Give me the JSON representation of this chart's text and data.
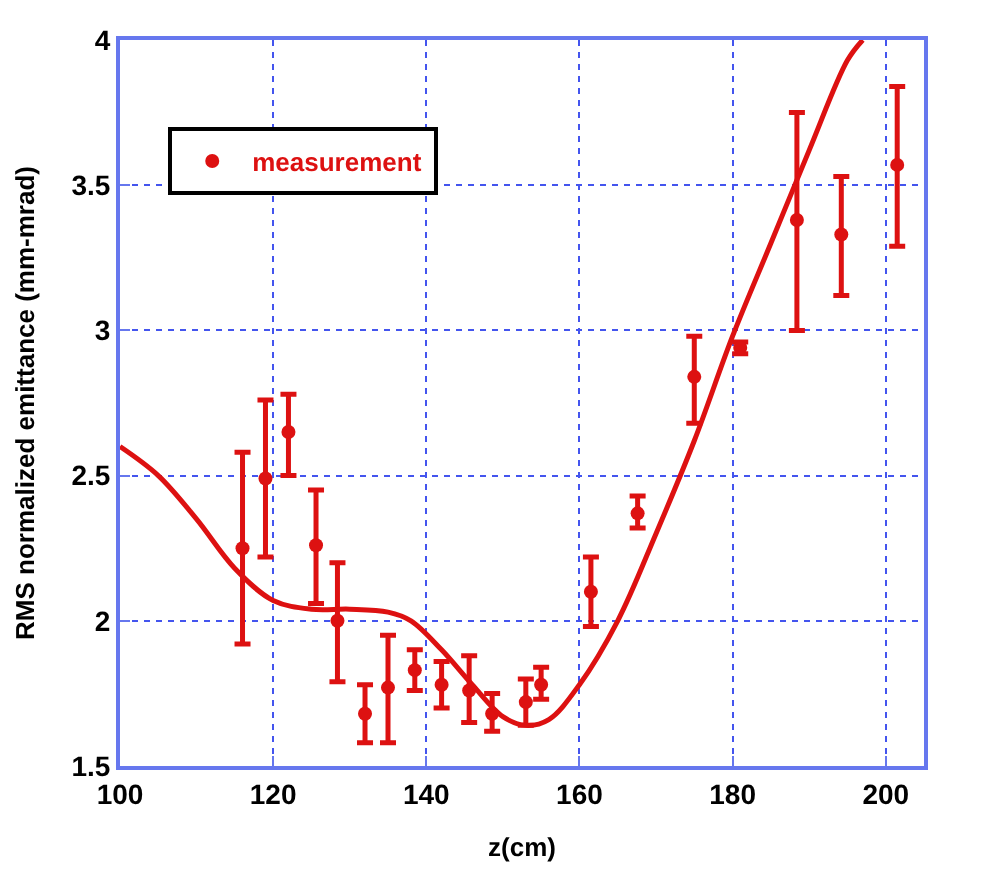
{
  "chart_data": {
    "type": "scatter",
    "xlabel": "z(cm)",
    "ylabel": "RMS normalized emittance (mm-mrad)",
    "xlim": [
      100,
      205
    ],
    "ylim": [
      1.5,
      4
    ],
    "xticks": [
      100,
      120,
      140,
      160,
      180,
      200
    ],
    "yticks": [
      1.5,
      2,
      2.5,
      3,
      3.5,
      4
    ],
    "grid": true,
    "legend": "top left",
    "series": [
      {
        "name": "measurement",
        "marker": "circle",
        "color": "#dd1111",
        "x": [
          116,
          119,
          122,
          125.6,
          128.4,
          132,
          135,
          138.5,
          142,
          145.6,
          148.6,
          153,
          155,
          161.5,
          167.6,
          175,
          181,
          188.4,
          194.2,
          201.5
        ],
        "values": [
          2.25,
          2.49,
          2.65,
          2.26,
          2.0,
          1.68,
          1.77,
          1.83,
          1.78,
          1.76,
          1.68,
          1.72,
          1.78,
          2.1,
          2.37,
          2.84,
          2.94,
          3.38,
          3.33,
          3.57
        ],
        "errors": [
          [
            1.92,
            2.58
          ],
          [
            2.22,
            2.76
          ],
          [
            2.5,
            2.78
          ],
          [
            2.06,
            2.45
          ],
          [
            1.79,
            2.2
          ],
          [
            1.58,
            1.78
          ],
          [
            1.58,
            1.95
          ],
          [
            1.76,
            1.9
          ],
          [
            1.7,
            1.86
          ],
          [
            1.65,
            1.88
          ],
          [
            1.62,
            1.75
          ],
          [
            1.64,
            1.8
          ],
          [
            1.73,
            1.84
          ],
          [
            1.98,
            2.22
          ],
          [
            2.32,
            2.43
          ],
          [
            2.68,
            2.98
          ],
          [
            2.92,
            2.96
          ],
          [
            3.0,
            3.75
          ],
          [
            3.12,
            3.53
          ],
          [
            3.29,
            3.84
          ]
        ]
      },
      {
        "type": "line",
        "color": "#dd1111",
        "line_style": "solid",
        "x": [
          100,
          105,
          110,
          115,
          120,
          125,
          130,
          135,
          138,
          142,
          146,
          150,
          153,
          156,
          160,
          165,
          170,
          175,
          180,
          185,
          190,
          195,
          197
        ],
        "values": [
          2.6,
          2.5,
          2.35,
          2.18,
          2.07,
          2.04,
          2.04,
          2.03,
          2.0,
          1.9,
          1.78,
          1.67,
          1.64,
          1.66,
          1.78,
          2.0,
          2.3,
          2.62,
          2.98,
          3.3,
          3.62,
          3.93,
          4.0
        ]
      }
    ]
  }
}
